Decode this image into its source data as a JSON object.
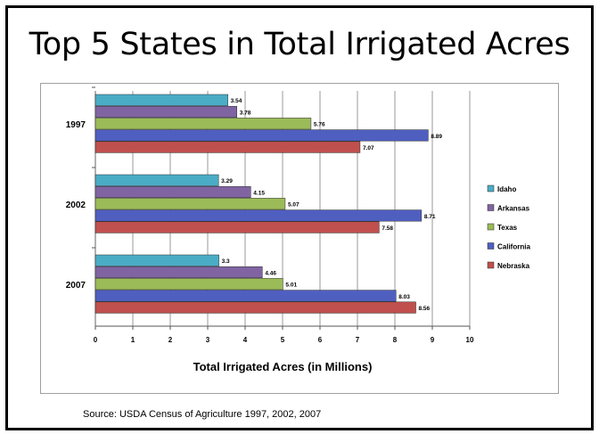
{
  "slide": {
    "title": "Top 5 States in Total Irrigated Acres",
    "source": "Source:  USDA Census of Agriculture 1997, 2002, 2007"
  },
  "chart_data": {
    "type": "bar",
    "orientation": "horizontal",
    "categories": [
      "1997",
      "2002",
      "2007"
    ],
    "series": [
      {
        "name": "Idaho",
        "color": "#4bacc6",
        "values": [
          3.54,
          3.29,
          3.3
        ]
      },
      {
        "name": "Arkansas",
        "color": "#8064a2",
        "values": [
          3.78,
          4.15,
          4.46
        ]
      },
      {
        "name": "Texas",
        "color": "#9bbb59",
        "values": [
          5.76,
          5.07,
          5.01
        ]
      },
      {
        "name": "California",
        "color": "#4f5fc0",
        "values": [
          8.89,
          8.71,
          8.03
        ]
      },
      {
        "name": "Nebraska",
        "color": "#c0504d",
        "values": [
          7.07,
          7.58,
          8.56
        ]
      }
    ],
    "xlabel": "Total Irrigated Acres (in Millions)",
    "ylabel": "",
    "xlim": [
      0,
      10
    ],
    "xticks": [
      "0",
      "1",
      "2",
      "3",
      "4",
      "5",
      "6",
      "7",
      "8",
      "9",
      "10"
    ],
    "grid": "vertical",
    "legend": "right"
  }
}
